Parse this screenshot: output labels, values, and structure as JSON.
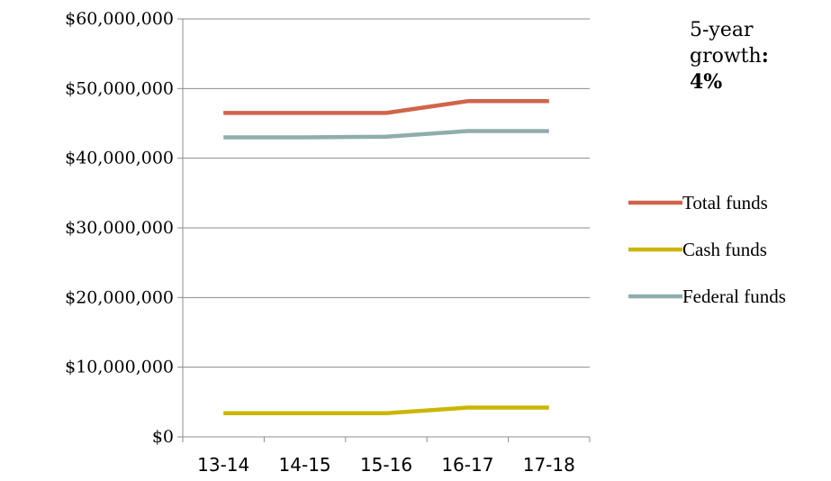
{
  "chart_data": {
    "type": "line",
    "categories": [
      "13-14",
      "14-15",
      "15-16",
      "16-17",
      "17-18"
    ],
    "ylim": [
      0,
      60000000
    ],
    "yticks": [
      "$0",
      "$10,000,000",
      "$20,000,000",
      "$30,000,000",
      "$40,000,000",
      "$50,000,000",
      "$60,000,000"
    ],
    "grid": true,
    "legend": "right",
    "series": [
      {
        "name": "Total funds",
        "color": "#d0644a",
        "values": [
          46500000,
          46500000,
          46500000,
          48200000,
          48200000
        ]
      },
      {
        "name": "Cash funds",
        "color": "#cbb600",
        "values": [
          3400000,
          3400000,
          3400000,
          4200000,
          4200000
        ]
      },
      {
        "name": "Federal funds",
        "color": "#8fadad",
        "values": [
          43000000,
          43000000,
          43100000,
          43900000,
          43900000
        ]
      }
    ]
  },
  "annotation": {
    "line1": "5-year",
    "line2": "growth",
    "colon": ":",
    "value": "4%"
  }
}
